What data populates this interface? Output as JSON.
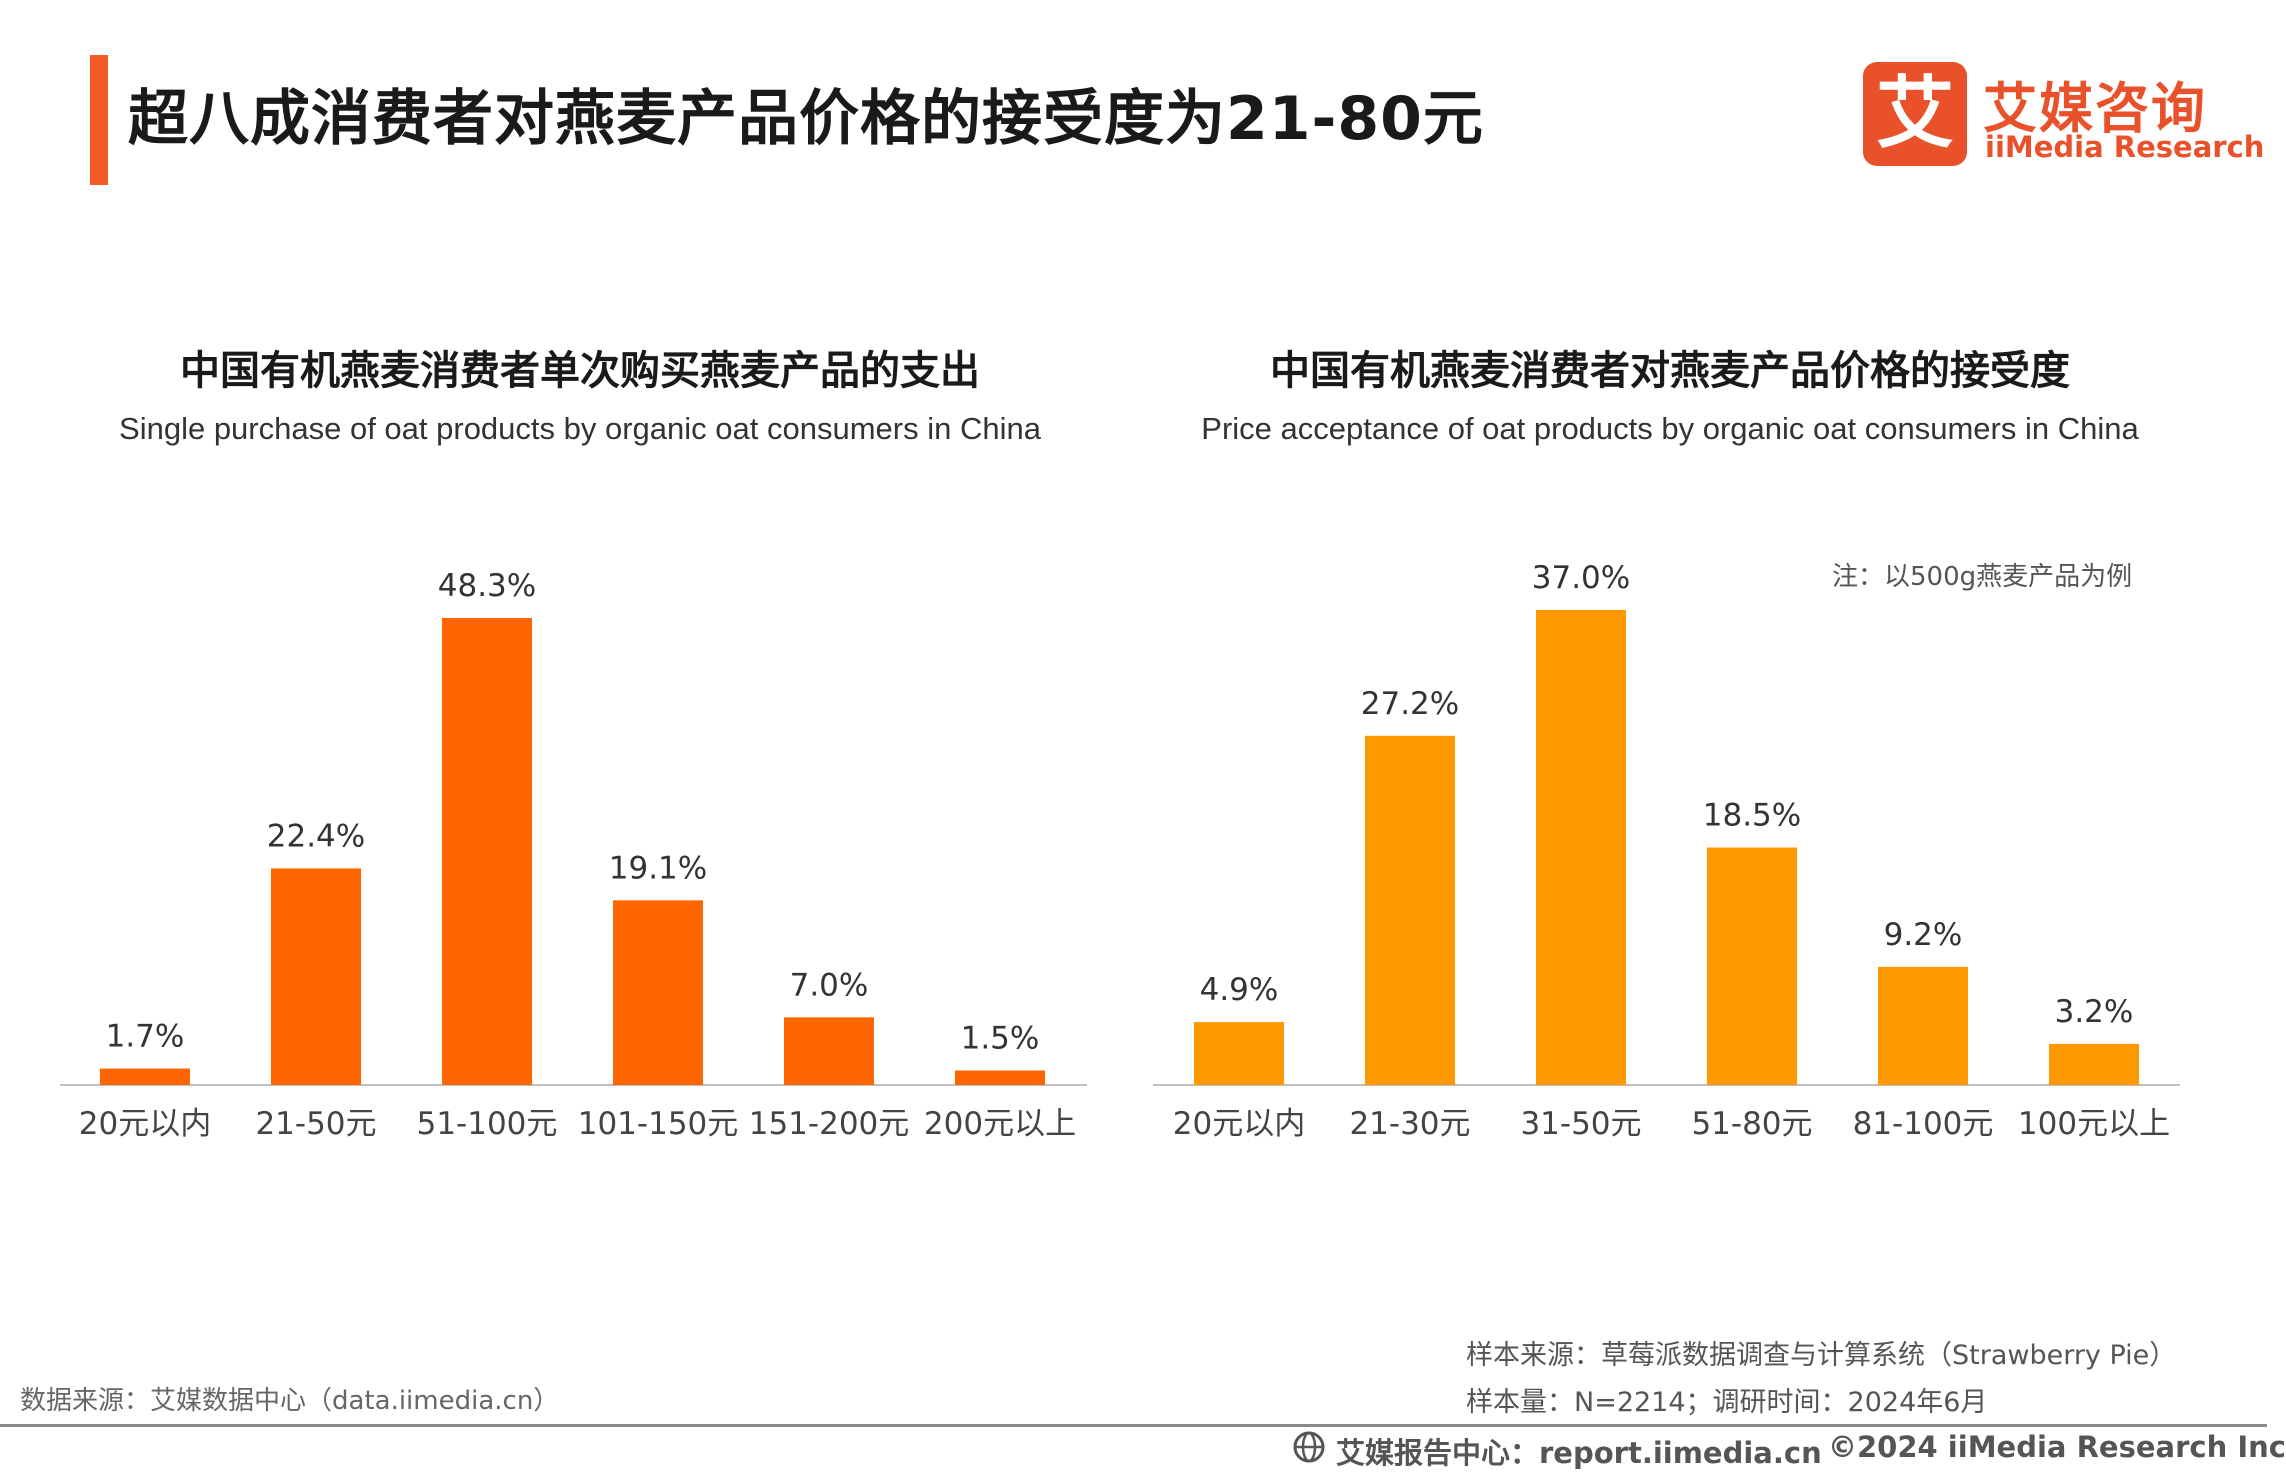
{
  "header": {
    "title": "超八成消费者对燕麦产品价格的接受度为21-80元"
  },
  "logo": {
    "mark": "艾",
    "cn": "艾媒咨询",
    "en": "iiMedia Research"
  },
  "colors": {
    "accent": "#f35b24",
    "chart1_bar": "#ff6600",
    "chart2_bar": "#ff9900",
    "axis": "#bfbfbf"
  },
  "chart_data": [
    {
      "type": "bar",
      "title": "中国有机燕麦消费者单次购买燕麦产品的支出",
      "subtitle": "Single purchase of oat products by organic oat consumers in China",
      "categories": [
        "20元以内",
        "21-50元",
        "51-100元",
        "101-150元",
        "151-200元",
        "200元以上"
      ],
      "values": [
        1.7,
        22.4,
        48.3,
        19.1,
        7.0,
        1.5
      ],
      "value_labels": [
        "1.7%",
        "22.4%",
        "48.3%",
        "19.1%",
        "7.0%",
        "1.5%"
      ],
      "unit": "%",
      "ylim": [
        0,
        48.3
      ],
      "grid": false,
      "legend": "none"
    },
    {
      "type": "bar",
      "title": "中国有机燕麦消费者对燕麦产品价格的接受度",
      "subtitle": "Price acceptance of oat products by organic oat consumers in China",
      "note": "注：以500g燕麦产品为例",
      "categories": [
        "20元以内",
        "21-30元",
        "31-50元",
        "51-80元",
        "81-100元",
        "100元以上"
      ],
      "values": [
        4.9,
        27.2,
        37.0,
        18.5,
        9.2,
        3.2
      ],
      "value_labels": [
        "4.9%",
        "27.2%",
        "37.0%",
        "18.5%",
        "9.2%",
        "3.2%"
      ],
      "unit": "%",
      "ylim": [
        0,
        37.0
      ],
      "grid": false,
      "legend": "none"
    }
  ],
  "sources": {
    "left": "数据来源：艾媒数据中心（data.iimedia.cn）",
    "sample_source": "样本来源：草莓派数据调查与计算系统（Strawberry Pie）",
    "sample_size": "样本量：N=2214；调研时间：2024年6月"
  },
  "footer": {
    "report": "艾媒报告中心：report.iimedia.cn",
    "copyright": "©2024  iiMedia Research Inc"
  }
}
